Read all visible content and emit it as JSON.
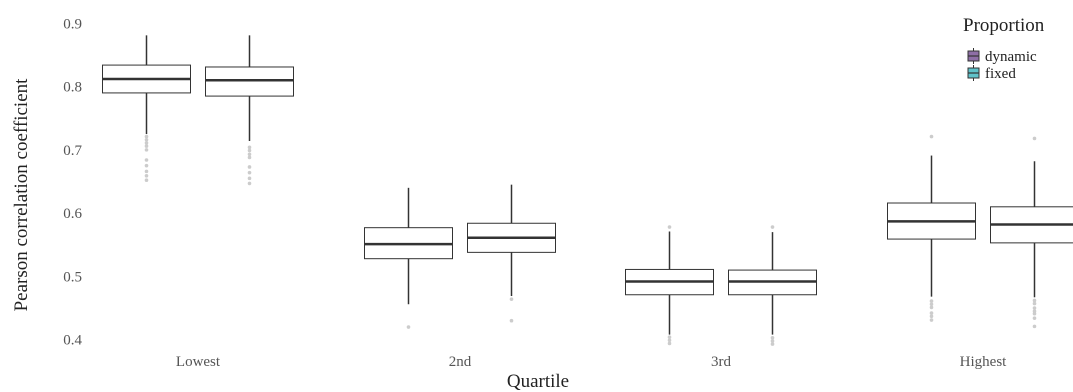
{
  "chart_data": {
    "type": "box",
    "title": "",
    "xlabel": "Quartile",
    "ylabel": "Pearson correlation coefficient",
    "categories": [
      "Lowest",
      "2nd",
      "3rd",
      "Highest"
    ],
    "ylim": [
      0.39,
      0.91
    ],
    "yticks": [
      0.4,
      0.5,
      0.6,
      0.7,
      0.8,
      0.9
    ],
    "ytick_labels": [
      "0.4",
      "0.5",
      "0.6",
      "0.7",
      "0.8",
      "0.9"
    ],
    "grid": false,
    "legend": {
      "title": "Proportion",
      "placement": "top-right",
      "entries": [
        {
          "label": "dynamic",
          "color": "#8e6fa6"
        },
        {
          "label": "fixed",
          "color": "#5fc2c9"
        }
      ]
    },
    "series": [
      {
        "name": "dynamic",
        "color": "#8e6fa6",
        "boxes": [
          {
            "whisker_low": 0.725,
            "q1": 0.79,
            "median": 0.812,
            "q3": 0.834,
            "whisker_high": 0.881,
            "outliers": [
              0.721,
              0.716,
              0.711,
              0.706,
              0.7,
              0.684,
              0.675,
              0.666,
              0.659,
              0.652
            ]
          },
          {
            "whisker_low": 0.456,
            "q1": 0.528,
            "median": 0.551,
            "q3": 0.577,
            "whisker_high": 0.64,
            "outliers": [
              0.42
            ]
          },
          {
            "whisker_low": 0.408,
            "q1": 0.471,
            "median": 0.492,
            "q3": 0.511,
            "whisker_high": 0.571,
            "outliers": [
              0.578,
              0.404,
              0.399,
              0.394
            ]
          },
          {
            "whisker_low": 0.468,
            "q1": 0.559,
            "median": 0.587,
            "q3": 0.616,
            "whisker_high": 0.691,
            "outliers": [
              0.721,
              0.461,
              0.456,
              0.451,
              0.442,
              0.437,
              0.431
            ]
          }
        ]
      },
      {
        "name": "fixed",
        "color": "#5fc2c9",
        "boxes": [
          {
            "whisker_low": 0.714,
            "q1": 0.785,
            "median": 0.81,
            "q3": 0.831,
            "whisker_high": 0.881,
            "outliers": [
              0.704,
              0.699,
              0.693,
              0.688,
              0.673,
              0.664,
              0.655,
              0.647
            ]
          },
          {
            "whisker_low": 0.469,
            "q1": 0.538,
            "median": 0.561,
            "q3": 0.584,
            "whisker_high": 0.645,
            "outliers": [
              0.464,
              0.43
            ]
          },
          {
            "whisker_low": 0.408,
            "q1": 0.471,
            "median": 0.492,
            "q3": 0.51,
            "whisker_high": 0.57,
            "outliers": [
              0.578,
              0.403,
              0.398,
              0.393
            ]
          },
          {
            "whisker_low": 0.467,
            "q1": 0.553,
            "median": 0.582,
            "q3": 0.61,
            "whisker_high": 0.682,
            "outliers": [
              0.718,
              0.462,
              0.457,
              0.45,
              0.445,
              0.441,
              0.434,
              0.421
            ]
          }
        ]
      }
    ]
  }
}
